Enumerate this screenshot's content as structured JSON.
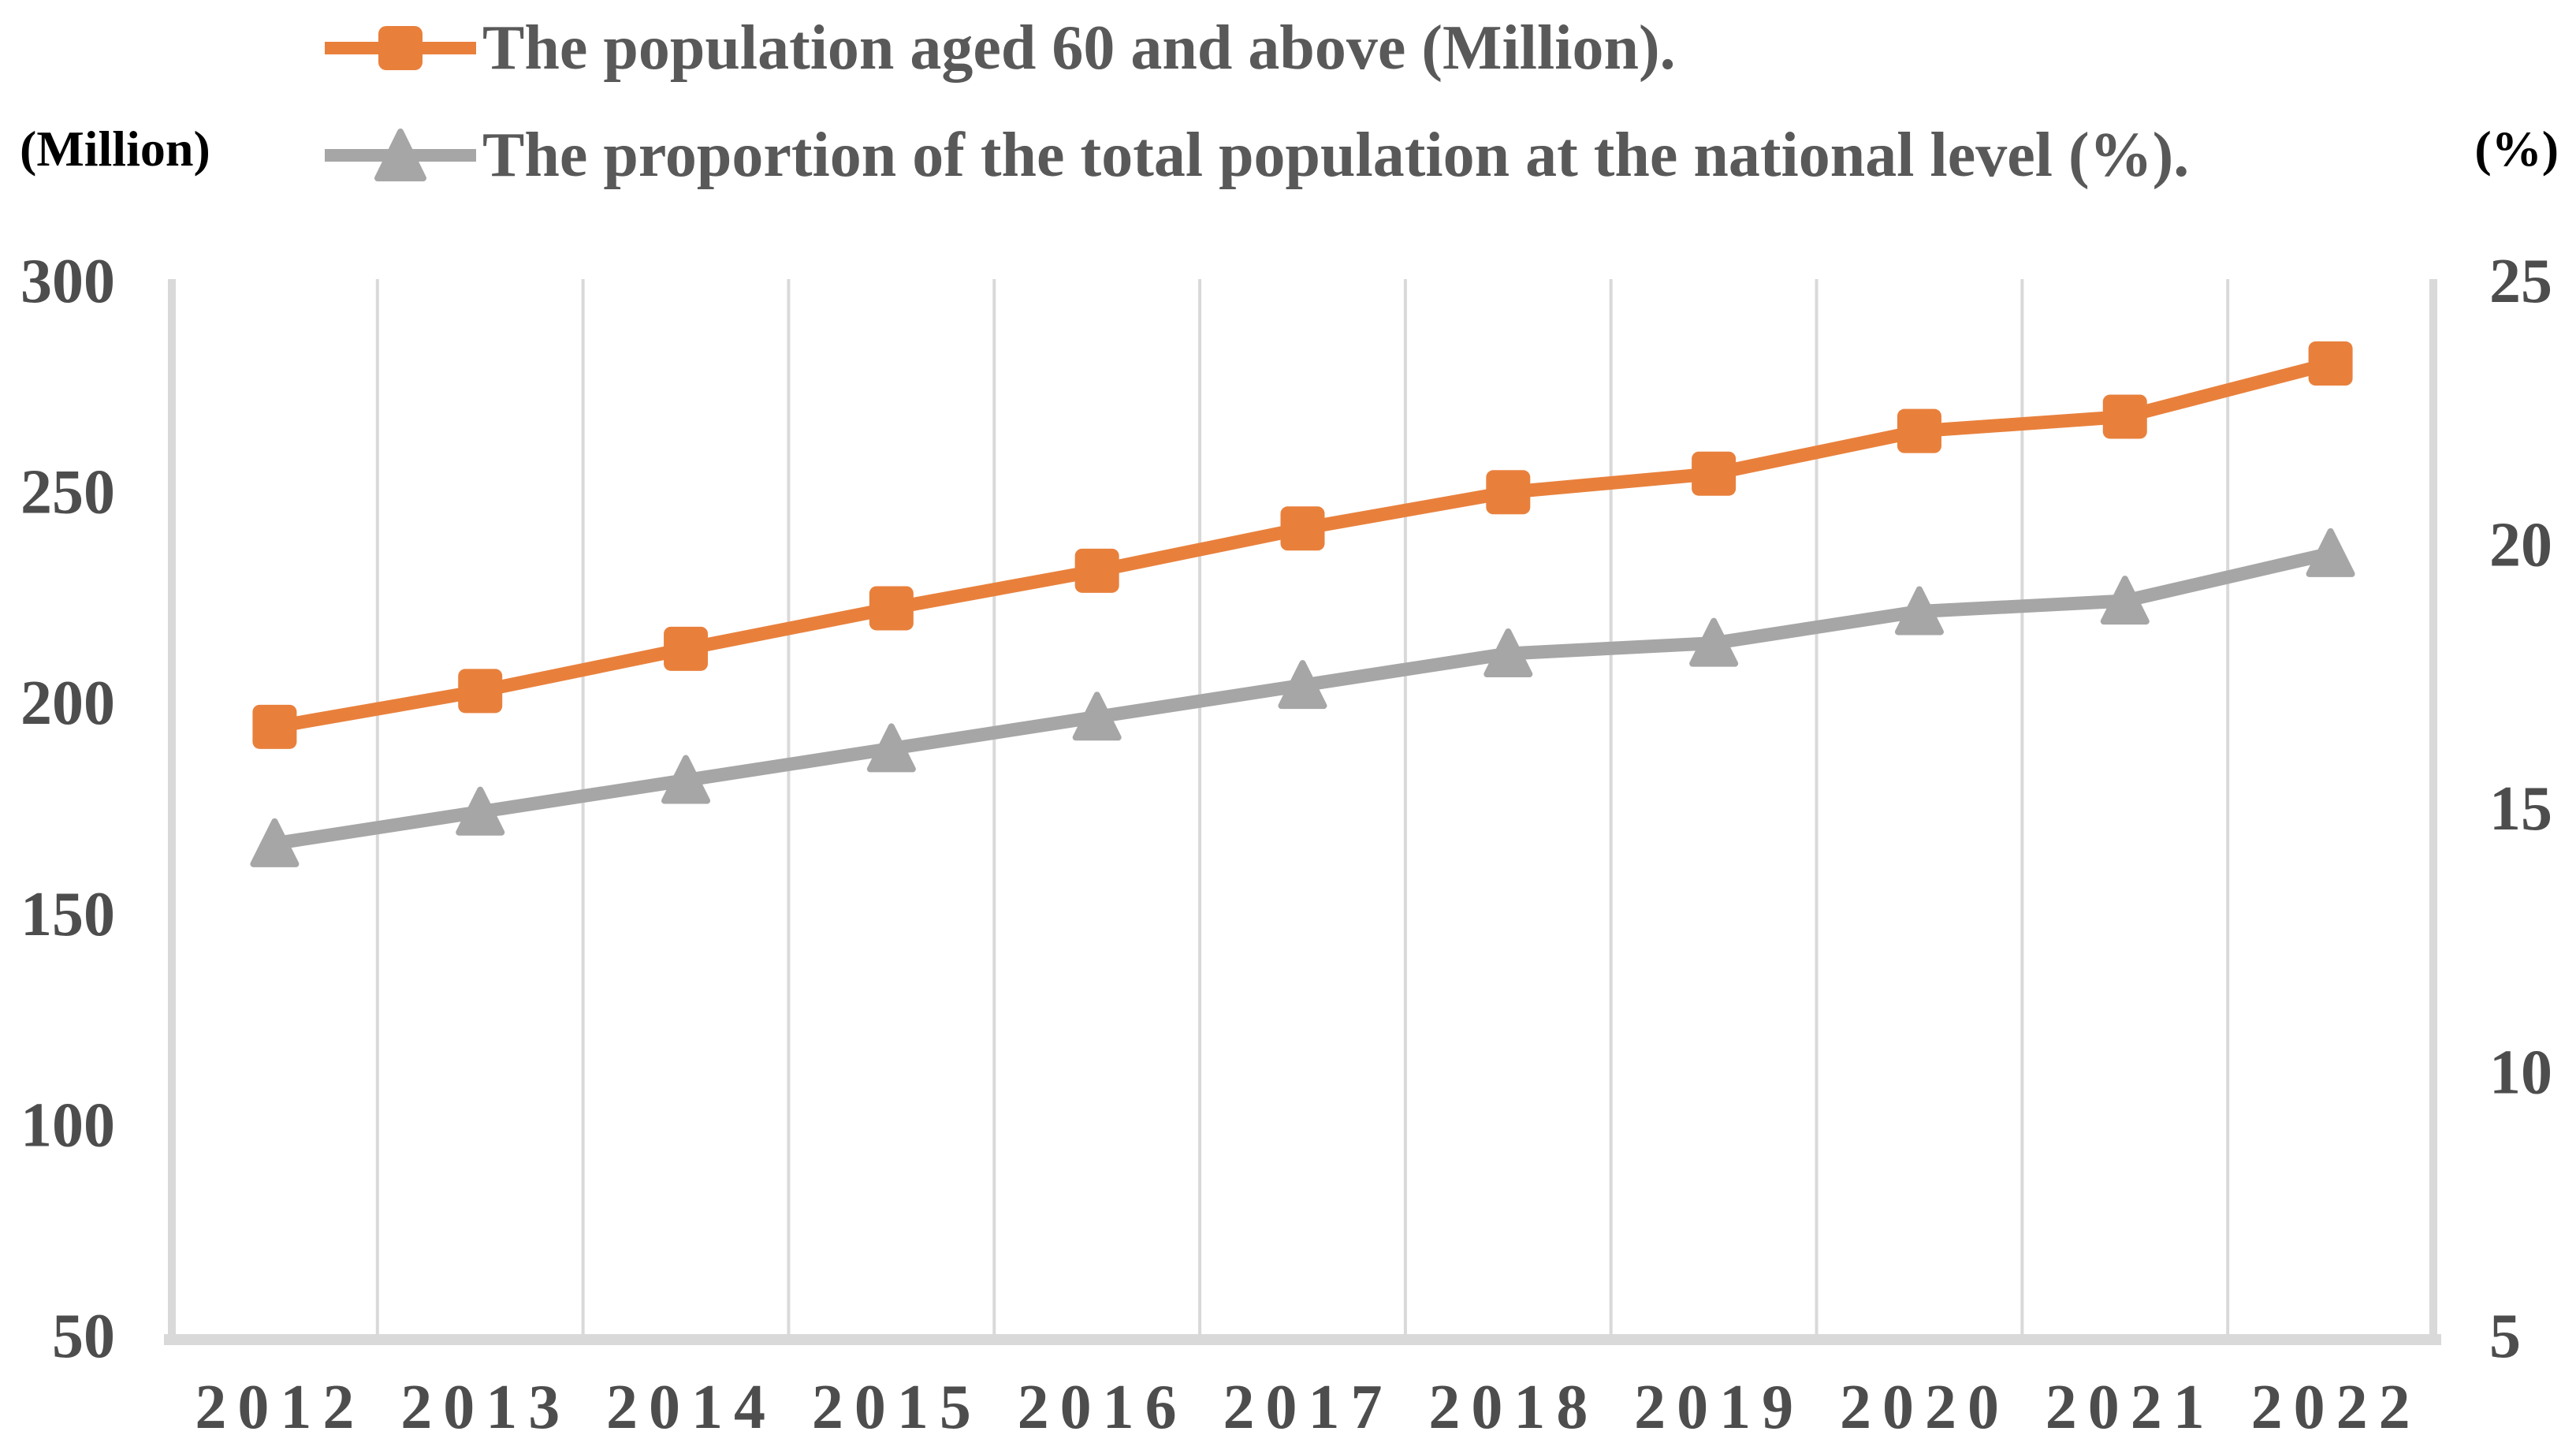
{
  "chart_data": {
    "type": "line",
    "categories": [
      "2012",
      "2013",
      "2014",
      "2015",
      "2016",
      "2017",
      "2018",
      "2019",
      "2020",
      "2021",
      "2022"
    ],
    "series": [
      {
        "name": "The population aged 60 and above (Million).",
        "axis": "left",
        "color": "#E8803C",
        "marker": "square",
        "values": [
          193.9,
          202.4,
          212.4,
          222.0,
          230.9,
          240.9,
          249.5,
          253.9,
          264.0,
          267.4,
          280.0
        ]
      },
      {
        "name": "The proportion of the total population at the national level (%).",
        "axis": "right",
        "color": "#A6A6A6",
        "marker": "triangle",
        "values": [
          14.3,
          14.9,
          15.5,
          16.1,
          16.7,
          17.3,
          17.9,
          18.1,
          18.7,
          18.9,
          19.8
        ]
      }
    ],
    "left_axis": {
      "label": "(Million)",
      "min": 50,
      "max": 300,
      "ticks": [
        300,
        250,
        200,
        150,
        100,
        50
      ]
    },
    "right_axis": {
      "label": "(%)",
      "min": 5,
      "max": 25,
      "ticks": [
        25,
        20,
        15,
        10,
        5
      ]
    },
    "grid": "vertical",
    "legend_position": "top-left"
  },
  "colors": {
    "gridline": "#D9D9D9",
    "axis_line": "#D9D9D9",
    "tick_text": "#4d4d4d",
    "legend_text": "#595959",
    "unit_text": "#000000",
    "background": "#ffffff"
  }
}
